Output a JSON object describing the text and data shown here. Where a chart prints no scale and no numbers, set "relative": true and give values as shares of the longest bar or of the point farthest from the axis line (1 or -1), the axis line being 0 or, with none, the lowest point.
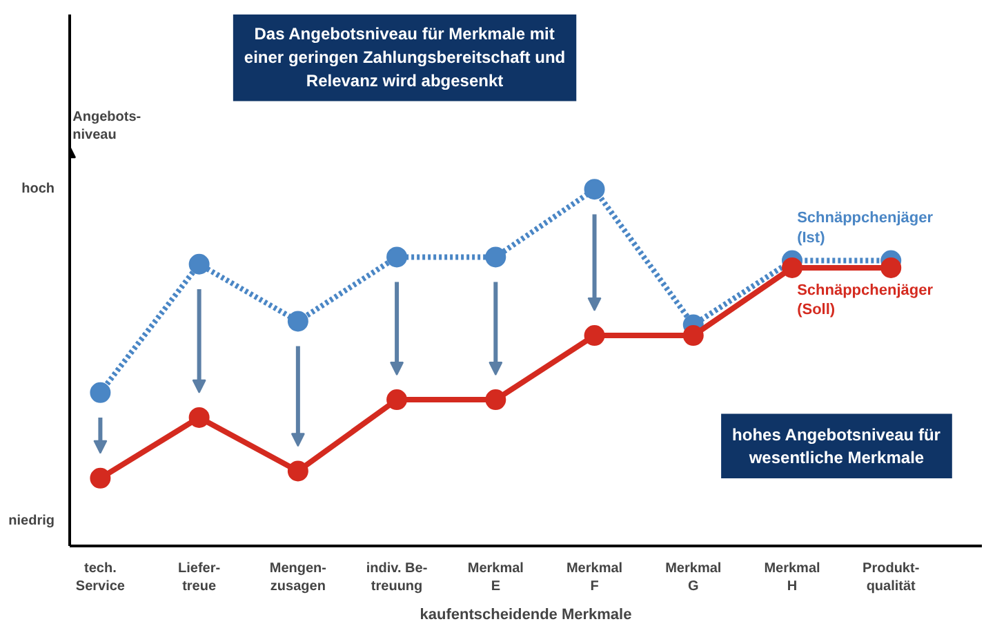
{
  "chart_data": {
    "type": "line",
    "relative": true,
    "xlabel": "kaufentscheidende Merkmale",
    "ylabel": "Angebots-\nniveau",
    "categories": [
      "tech.\nService",
      "Liefer-\ntreue",
      "Mengen-\nzusagen",
      "indiv. Be-\ntreuung",
      "Merkmal\nE",
      "Merkmal\nF",
      "Merkmal\nG",
      "Merkmal\nH",
      "Produkt-\nqualität"
    ],
    "series": [
      {
        "name": "Schnäppchenjäger\n(Ist)",
        "color": "#4a86c5",
        "line_style": "dotted",
        "values": [
          0.43,
          0.79,
          0.63,
          0.81,
          0.81,
          1.0,
          0.62,
          0.8,
          0.8
        ]
      },
      {
        "name": "Schnäppchenjäger\n(Soll)",
        "color": "#d42a1f",
        "line_style": "solid",
        "values": [
          0.19,
          0.36,
          0.21,
          0.41,
          0.41,
          0.59,
          0.59,
          0.78,
          0.78
        ]
      }
    ],
    "marker": "circle",
    "grid": false,
    "legend": false,
    "annotations": [
      "Das Angebotsniveau für Merkmale mit\neiner geringen Zahlungsbereitschaft und\nRelevanz wird abgesenkt",
      "hohes Angebotsniveau für\nwesentliche Merkmale",
      "hoch",
      "niedrig"
    ]
  }
}
